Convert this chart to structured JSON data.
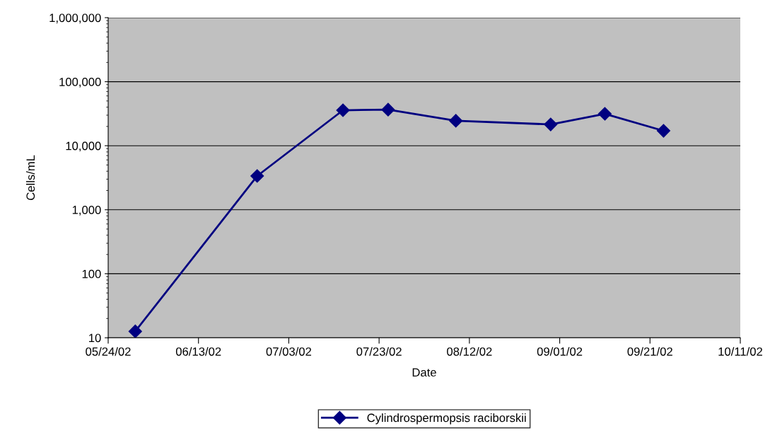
{
  "chart_data": {
    "type": "line",
    "xlabel": "Date",
    "ylabel": "Cells/mL",
    "log": true,
    "grid": "y",
    "legend": "bottom",
    "marker": "diamond",
    "line_style": "solid",
    "x": [
      "2002-05-30",
      "2002-06-26",
      "2002-07-15",
      "2002-07-25",
      "2002-08-09",
      "2002-08-30",
      "2002-09-11",
      "2002-09-24"
    ],
    "series": [
      {
        "name": "Cylindrospermopsis raciborskii",
        "color": "#000080",
        "values": [
          12.6,
          3370,
          35800,
          36600,
          24500,
          21500,
          31500,
          17100
        ]
      }
    ],
    "xlim": [
      "2002-05-24",
      "2002-10-11"
    ],
    "xticks": [
      {
        "value": "2002-05-24",
        "label": "05/24/02"
      },
      {
        "value": "2002-06-13",
        "label": "06/13/02"
      },
      {
        "value": "2002-07-03",
        "label": "07/03/02"
      },
      {
        "value": "2002-07-23",
        "label": "07/23/02"
      },
      {
        "value": "2002-08-12",
        "label": "08/12/02"
      },
      {
        "value": "2002-09-01",
        "label": "09/01/02"
      },
      {
        "value": "2002-09-21",
        "label": "09/21/02"
      },
      {
        "value": "2002-10-11",
        "label": "10/11/02"
      }
    ],
    "ylim": [
      10,
      1000000
    ],
    "yticks": [
      10,
      100,
      {
        "value": 1000,
        "label": "1,000"
      },
      {
        "value": 10000,
        "label": "10,000"
      },
      {
        "value": 100000,
        "label": "100,000"
      },
      {
        "value": 1000000,
        "label": "1,000,000"
      }
    ]
  }
}
